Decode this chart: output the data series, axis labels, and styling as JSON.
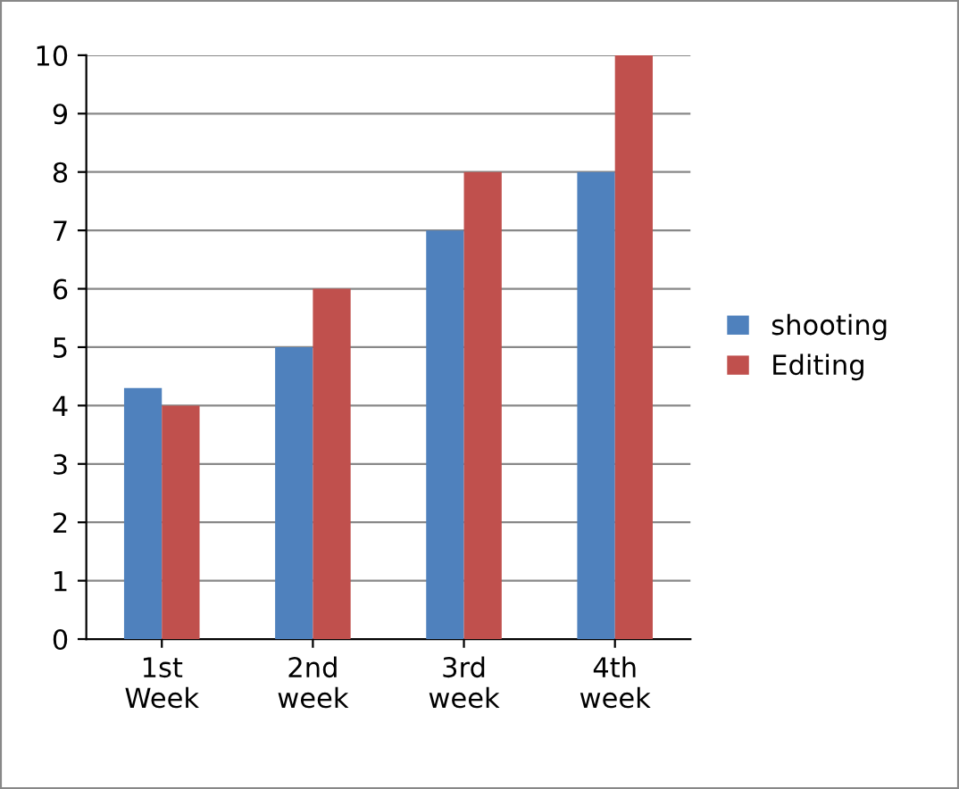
{
  "chart_data": {
    "type": "bar",
    "categories": [
      "1st\nWeek",
      "2nd\nweek",
      "3rd\nweek",
      "4th\nweek"
    ],
    "series": [
      {
        "name": "shooting",
        "color": "#4f81bd",
        "values": [
          4.3,
          5,
          7,
          8
        ]
      },
      {
        "name": "Editing",
        "color": "#c0504d",
        "values": [
          4,
          6,
          8,
          10
        ]
      }
    ],
    "ylim": [
      0,
      10
    ],
    "yticks": [
      0,
      1,
      2,
      3,
      4,
      5,
      6,
      7,
      8,
      9,
      10
    ],
    "grid": "y",
    "legend": "right"
  }
}
